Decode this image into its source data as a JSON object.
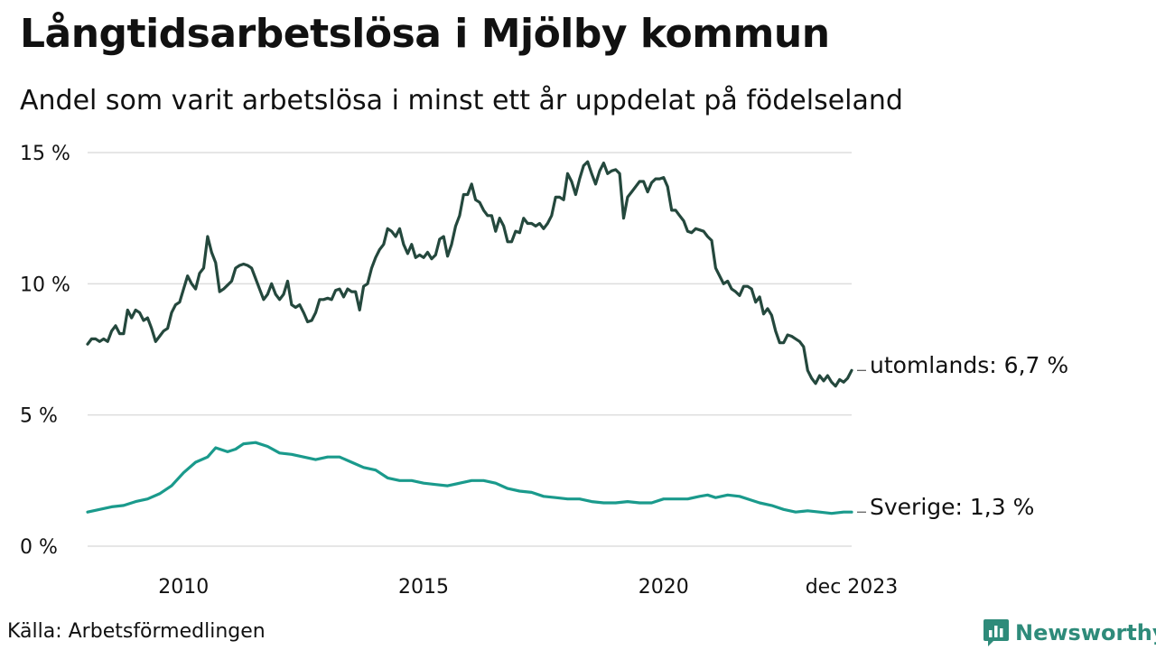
{
  "header": {
    "title": "Långtidsarbetslösa i Mjölby kommun",
    "subtitle": "Andel som varit arbetslösa i minst ett år uppdelat på födelseland"
  },
  "footer": {
    "source": "Källa: Arbetsförmedlingen",
    "brand": "Newsworthy"
  },
  "colors": {
    "utomlands": "#24483d",
    "sverige": "#1a9a8c",
    "grid": "#dddddd",
    "brand": "#2e8b7a"
  },
  "chart_data": {
    "type": "line",
    "title": "Långtidsarbetslösa i Mjölby kommun",
    "subtitle": "Andel som varit arbetslösa i minst ett år uppdelat på födelseland",
    "xlabel": "",
    "ylabel": "",
    "x_range": [
      2008.0,
      2023.917
    ],
    "ylim": [
      0,
      15
    ],
    "y_ticks": [
      {
        "value": 0,
        "label": "0 %"
      },
      {
        "value": 5,
        "label": "5 %"
      },
      {
        "value": 10,
        "label": "10 %"
      },
      {
        "value": 15,
        "label": "15 %"
      }
    ],
    "x_ticks": [
      {
        "value": 2010,
        "label": "2010"
      },
      {
        "value": 2015,
        "label": "2015"
      },
      {
        "value": 2020,
        "label": "2020"
      },
      {
        "value": 2023.917,
        "label": "dec 2023"
      }
    ],
    "grid": true,
    "series": [
      {
        "name": "utomlands",
        "end_label": "utomlands: 6,7 %",
        "color": "#24483d",
        "points": [
          [
            2008.0,
            7.7
          ],
          [
            2008.083,
            7.9
          ],
          [
            2008.167,
            7.9
          ],
          [
            2008.25,
            7.8
          ],
          [
            2008.333,
            7.9
          ],
          [
            2008.417,
            7.8
          ],
          [
            2008.5,
            8.2
          ],
          [
            2008.583,
            8.4
          ],
          [
            2008.667,
            8.1
          ],
          [
            2008.75,
            8.1
          ],
          [
            2008.833,
            9.0
          ],
          [
            2008.917,
            8.7
          ],
          [
            2009.0,
            9.0
          ],
          [
            2009.083,
            8.9
          ],
          [
            2009.167,
            8.6
          ],
          [
            2009.25,
            8.7
          ],
          [
            2009.333,
            8.3
          ],
          [
            2009.417,
            7.8
          ],
          [
            2009.5,
            8.0
          ],
          [
            2009.583,
            8.2
          ],
          [
            2009.667,
            8.3
          ],
          [
            2009.75,
            8.9
          ],
          [
            2009.833,
            9.2
          ],
          [
            2009.917,
            9.3
          ],
          [
            2010.0,
            9.8
          ],
          [
            2010.083,
            10.3
          ],
          [
            2010.167,
            10.0
          ],
          [
            2010.25,
            9.8
          ],
          [
            2010.333,
            10.4
          ],
          [
            2010.417,
            10.6
          ],
          [
            2010.5,
            11.8
          ],
          [
            2010.583,
            11.2
          ],
          [
            2010.667,
            10.8
          ],
          [
            2010.75,
            9.7
          ],
          [
            2010.833,
            9.8
          ],
          [
            2010.917,
            9.95
          ],
          [
            2011.0,
            10.1
          ],
          [
            2011.083,
            10.6
          ],
          [
            2011.167,
            10.7
          ],
          [
            2011.25,
            10.75
          ],
          [
            2011.333,
            10.7
          ],
          [
            2011.417,
            10.6
          ],
          [
            2011.5,
            10.2
          ],
          [
            2011.583,
            9.8
          ],
          [
            2011.667,
            9.4
          ],
          [
            2011.75,
            9.6
          ],
          [
            2011.833,
            10.0
          ],
          [
            2011.917,
            9.6
          ],
          [
            2012.0,
            9.4
          ],
          [
            2012.083,
            9.6
          ],
          [
            2012.167,
            10.1
          ],
          [
            2012.25,
            9.2
          ],
          [
            2012.333,
            9.1
          ],
          [
            2012.417,
            9.2
          ],
          [
            2012.5,
            8.9
          ],
          [
            2012.583,
            8.55
          ],
          [
            2012.667,
            8.6
          ],
          [
            2012.75,
            8.9
          ],
          [
            2012.833,
            9.4
          ],
          [
            2012.917,
            9.4
          ],
          [
            2013.0,
            9.45
          ],
          [
            2013.083,
            9.4
          ],
          [
            2013.167,
            9.75
          ],
          [
            2013.25,
            9.8
          ],
          [
            2013.333,
            9.5
          ],
          [
            2013.417,
            9.8
          ],
          [
            2013.5,
            9.7
          ],
          [
            2013.583,
            9.7
          ],
          [
            2013.667,
            9.0
          ],
          [
            2013.75,
            9.9
          ],
          [
            2013.833,
            10.0
          ],
          [
            2013.917,
            10.6
          ],
          [
            2014.0,
            11.0
          ],
          [
            2014.083,
            11.3
          ],
          [
            2014.167,
            11.5
          ],
          [
            2014.25,
            12.1
          ],
          [
            2014.333,
            12.0
          ],
          [
            2014.417,
            11.8
          ],
          [
            2014.5,
            12.1
          ],
          [
            2014.583,
            11.5
          ],
          [
            2014.667,
            11.15
          ],
          [
            2014.75,
            11.5
          ],
          [
            2014.833,
            11.0
          ],
          [
            2014.917,
            11.1
          ],
          [
            2015.0,
            11.0
          ],
          [
            2015.083,
            11.2
          ],
          [
            2015.167,
            10.95
          ],
          [
            2015.25,
            11.1
          ],
          [
            2015.333,
            11.7
          ],
          [
            2015.417,
            11.8
          ],
          [
            2015.5,
            11.05
          ],
          [
            2015.583,
            11.5
          ],
          [
            2015.667,
            12.2
          ],
          [
            2015.75,
            12.6
          ],
          [
            2015.833,
            13.4
          ],
          [
            2015.917,
            13.4
          ],
          [
            2016.0,
            13.8
          ],
          [
            2016.083,
            13.2
          ],
          [
            2016.167,
            13.1
          ],
          [
            2016.25,
            12.8
          ],
          [
            2016.333,
            12.6
          ],
          [
            2016.417,
            12.6
          ],
          [
            2016.5,
            12.0
          ],
          [
            2016.583,
            12.5
          ],
          [
            2016.667,
            12.2
          ],
          [
            2016.75,
            11.6
          ],
          [
            2016.833,
            11.6
          ],
          [
            2016.917,
            12.0
          ],
          [
            2017.0,
            11.95
          ],
          [
            2017.083,
            12.5
          ],
          [
            2017.167,
            12.3
          ],
          [
            2017.25,
            12.3
          ],
          [
            2017.333,
            12.2
          ],
          [
            2017.417,
            12.3
          ],
          [
            2017.5,
            12.1
          ],
          [
            2017.583,
            12.3
          ],
          [
            2017.667,
            12.6
          ],
          [
            2017.75,
            13.3
          ],
          [
            2017.833,
            13.3
          ],
          [
            2017.917,
            13.2
          ],
          [
            2018.0,
            14.2
          ],
          [
            2018.083,
            13.9
          ],
          [
            2018.167,
            13.4
          ],
          [
            2018.25,
            14.0
          ],
          [
            2018.333,
            14.5
          ],
          [
            2018.417,
            14.65
          ],
          [
            2018.5,
            14.2
          ],
          [
            2018.583,
            13.8
          ],
          [
            2018.667,
            14.3
          ],
          [
            2018.75,
            14.6
          ],
          [
            2018.833,
            14.2
          ],
          [
            2018.917,
            14.3
          ],
          [
            2019.0,
            14.35
          ],
          [
            2019.083,
            14.2
          ],
          [
            2019.167,
            12.5
          ],
          [
            2019.25,
            13.3
          ],
          [
            2019.333,
            13.5
          ],
          [
            2019.417,
            13.7
          ],
          [
            2019.5,
            13.9
          ],
          [
            2019.583,
            13.9
          ],
          [
            2019.667,
            13.5
          ],
          [
            2019.75,
            13.85
          ],
          [
            2019.833,
            14.0
          ],
          [
            2019.917,
            14.0
          ],
          [
            2020.0,
            14.05
          ],
          [
            2020.083,
            13.7
          ],
          [
            2020.167,
            12.8
          ],
          [
            2020.25,
            12.8
          ],
          [
            2020.333,
            12.6
          ],
          [
            2020.417,
            12.4
          ],
          [
            2020.5,
            12.0
          ],
          [
            2020.583,
            11.95
          ],
          [
            2020.667,
            12.1
          ],
          [
            2020.75,
            12.05
          ],
          [
            2020.833,
            12.0
          ],
          [
            2020.917,
            11.8
          ],
          [
            2021.0,
            11.65
          ],
          [
            2021.083,
            10.6
          ],
          [
            2021.167,
            10.3
          ],
          [
            2021.25,
            10.0
          ],
          [
            2021.333,
            10.1
          ],
          [
            2021.417,
            9.8
          ],
          [
            2021.5,
            9.7
          ],
          [
            2021.583,
            9.55
          ],
          [
            2021.667,
            9.9
          ],
          [
            2021.75,
            9.9
          ],
          [
            2021.833,
            9.8
          ],
          [
            2021.917,
            9.3
          ],
          [
            2022.0,
            9.5
          ],
          [
            2022.083,
            8.85
          ],
          [
            2022.167,
            9.05
          ],
          [
            2022.25,
            8.8
          ],
          [
            2022.333,
            8.2
          ],
          [
            2022.417,
            7.75
          ],
          [
            2022.5,
            7.75
          ],
          [
            2022.583,
            8.05
          ],
          [
            2022.667,
            8.0
          ],
          [
            2022.75,
            7.9
          ],
          [
            2022.833,
            7.8
          ],
          [
            2022.917,
            7.6
          ],
          [
            2023.0,
            6.7
          ],
          [
            2023.083,
            6.4
          ],
          [
            2023.167,
            6.2
          ],
          [
            2023.25,
            6.5
          ],
          [
            2023.333,
            6.3
          ],
          [
            2023.417,
            6.5
          ],
          [
            2023.5,
            6.25
          ],
          [
            2023.583,
            6.1
          ],
          [
            2023.667,
            6.35
          ],
          [
            2023.75,
            6.25
          ],
          [
            2023.833,
            6.4
          ],
          [
            2023.917,
            6.7
          ]
        ]
      },
      {
        "name": "Sverige",
        "end_label": "Sverige: 1,3 %",
        "color": "#1a9a8c",
        "points": [
          [
            2008.0,
            1.3
          ],
          [
            2008.25,
            1.4
          ],
          [
            2008.5,
            1.5
          ],
          [
            2008.75,
            1.55
          ],
          [
            2009.0,
            1.7
          ],
          [
            2009.25,
            1.8
          ],
          [
            2009.5,
            2.0
          ],
          [
            2009.75,
            2.3
          ],
          [
            2010.0,
            2.8
          ],
          [
            2010.25,
            3.2
          ],
          [
            2010.5,
            3.4
          ],
          [
            2010.667,
            3.75
          ],
          [
            2010.917,
            3.6
          ],
          [
            2011.083,
            3.7
          ],
          [
            2011.25,
            3.9
          ],
          [
            2011.5,
            3.95
          ],
          [
            2011.75,
            3.8
          ],
          [
            2012.0,
            3.55
          ],
          [
            2012.25,
            3.5
          ],
          [
            2012.5,
            3.4
          ],
          [
            2012.75,
            3.3
          ],
          [
            2013.0,
            3.4
          ],
          [
            2013.25,
            3.4
          ],
          [
            2013.5,
            3.2
          ],
          [
            2013.75,
            3.0
          ],
          [
            2014.0,
            2.9
          ],
          [
            2014.25,
            2.6
          ],
          [
            2014.5,
            2.5
          ],
          [
            2014.75,
            2.5
          ],
          [
            2015.0,
            2.4
          ],
          [
            2015.25,
            2.35
          ],
          [
            2015.5,
            2.3
          ],
          [
            2015.75,
            2.4
          ],
          [
            2016.0,
            2.5
          ],
          [
            2016.25,
            2.5
          ],
          [
            2016.5,
            2.4
          ],
          [
            2016.75,
            2.2
          ],
          [
            2017.0,
            2.1
          ],
          [
            2017.25,
            2.05
          ],
          [
            2017.5,
            1.9
          ],
          [
            2017.75,
            1.85
          ],
          [
            2018.0,
            1.8
          ],
          [
            2018.25,
            1.8
          ],
          [
            2018.5,
            1.7
          ],
          [
            2018.75,
            1.65
          ],
          [
            2019.0,
            1.65
          ],
          [
            2019.25,
            1.7
          ],
          [
            2019.5,
            1.65
          ],
          [
            2019.75,
            1.65
          ],
          [
            2020.0,
            1.8
          ],
          [
            2020.25,
            1.8
          ],
          [
            2020.5,
            1.8
          ],
          [
            2020.75,
            1.9
          ],
          [
            2020.917,
            1.95
          ],
          [
            2021.083,
            1.85
          ],
          [
            2021.333,
            1.95
          ],
          [
            2021.583,
            1.9
          ],
          [
            2021.833,
            1.75
          ],
          [
            2022.0,
            1.65
          ],
          [
            2022.25,
            1.55
          ],
          [
            2022.5,
            1.4
          ],
          [
            2022.75,
            1.3
          ],
          [
            2023.0,
            1.35
          ],
          [
            2023.25,
            1.3
          ],
          [
            2023.5,
            1.25
          ],
          [
            2023.75,
            1.3
          ],
          [
            2023.917,
            1.3
          ]
        ]
      }
    ]
  }
}
